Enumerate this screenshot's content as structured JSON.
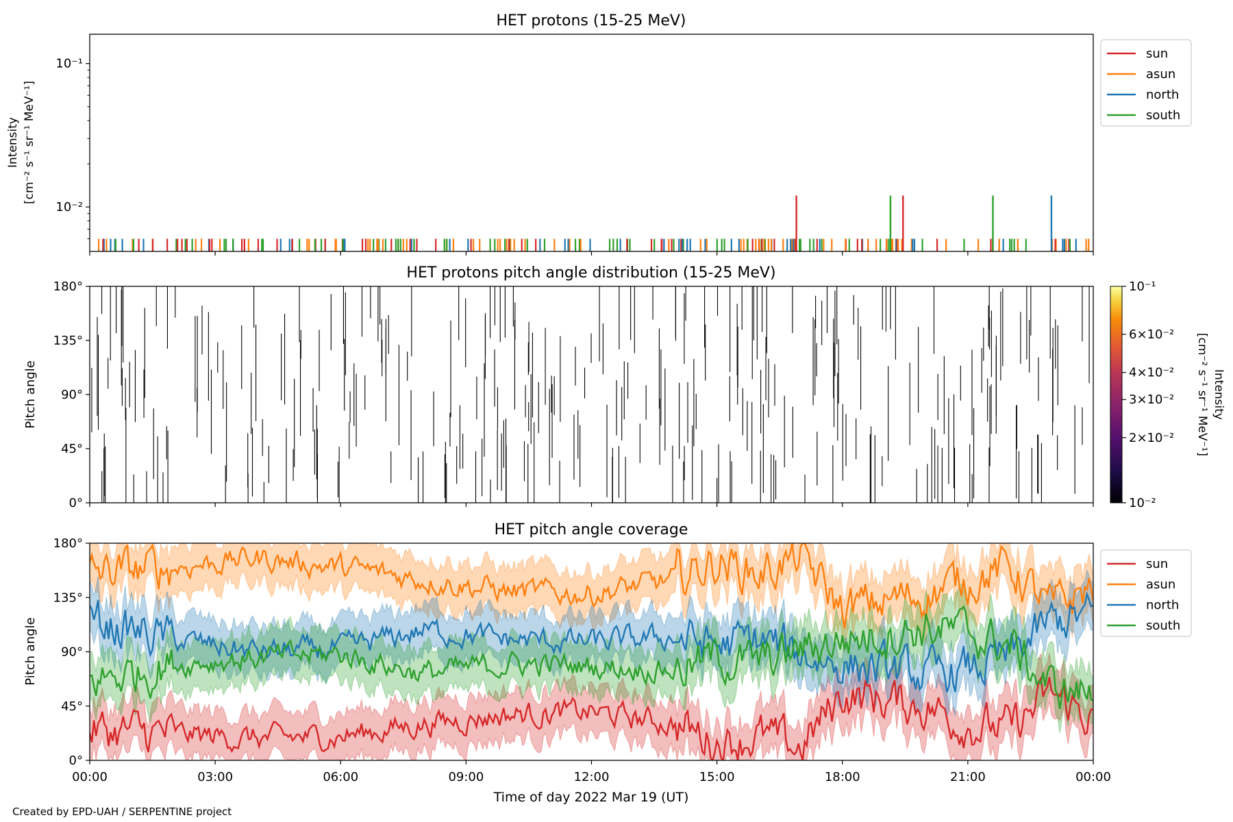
{
  "footer": "Created by EPD-UAH / SERPENTINE project",
  "chart_data": [
    {
      "type": "line",
      "title": "HET protons (15-25 MeV)",
      "ylabel_line1": "Intensity",
      "ylabel_line2": "[cm⁻² s⁻¹ sr⁻¹ MeV⁻¹]",
      "yscale": "log",
      "ylim": [
        0.0049,
        0.16
      ],
      "yticks": [
        {
          "value": 0.1,
          "label": "10⁻¹"
        },
        {
          "value": 0.01,
          "label": "10⁻²"
        }
      ],
      "xlim_hours": [
        0,
        24
      ],
      "legend": {
        "placement": "outside-right-top",
        "entries": [
          "sun",
          "asun",
          "north",
          "south"
        ]
      },
      "series_colors": {
        "sun": "#d62728",
        "asun": "#ff7f0e",
        "north": "#1f77b4",
        "south": "#2ca02c"
      },
      "baseline_spike_value": 0.006,
      "tall_spikes": [
        {
          "series": "sun",
          "time_hours": 16.9,
          "value": 0.012
        },
        {
          "series": "south",
          "time_hours": 19.15,
          "value": 0.012
        },
        {
          "series": "sun",
          "time_hours": 19.45,
          "value": 0.012
        },
        {
          "series": "south",
          "time_hours": 21.6,
          "value": 0.012
        },
        {
          "series": "north",
          "time_hours": 23.0,
          "value": 0.012
        }
      ]
    },
    {
      "type": "heatmap",
      "title": "HET protons pitch angle distribution (15-25 MeV)",
      "ylabel": "Pitch angle",
      "ylim": [
        0,
        180
      ],
      "yticks": [
        "0°",
        "45°",
        "90°",
        "135°",
        "180°"
      ],
      "xlim_hours": [
        0,
        24
      ],
      "colorbar": {
        "label_line1": "Intensity",
        "label_line2": "[cm⁻² s⁻¹ sr⁻¹ MeV⁻¹]",
        "scale": "log",
        "range": [
          0.01,
          0.1
        ],
        "colormap": "inferno",
        "ticks": [
          {
            "value": 0.1,
            "label": "10⁻¹"
          },
          {
            "value": 0.06,
            "label": "6×10⁻²"
          },
          {
            "value": 0.04,
            "label": "4×10⁻²"
          },
          {
            "value": 0.03,
            "label": "3×10⁻²"
          },
          {
            "value": 0.02,
            "label": "2×10⁻²"
          },
          {
            "value": 0.01,
            "label": "10⁻²"
          }
        ]
      }
    },
    {
      "type": "area",
      "title": "HET pitch angle coverage",
      "ylabel": "Pitch angle",
      "ylim": [
        0,
        180
      ],
      "yticks": [
        "0°",
        "45°",
        "90°",
        "135°",
        "180°"
      ],
      "xlabel": "Time of day 2022 Mar 19 (UT)",
      "xlim_hours": [
        0,
        24
      ],
      "xticks": [
        "00:00",
        "03:00",
        "06:00",
        "09:00",
        "12:00",
        "15:00",
        "18:00",
        "21:00",
        "00:00"
      ],
      "legend": {
        "placement": "outside-right-top",
        "entries": [
          "sun",
          "asun",
          "north",
          "south"
        ]
      },
      "series": [
        {
          "name": "sun",
          "color": "#d62728",
          "time_hours": [
            0,
            2,
            4,
            6,
            8,
            10,
            12,
            14,
            15,
            16,
            17,
            18,
            20,
            21,
            22,
            23,
            24
          ],
          "values": [
            25,
            22,
            18,
            20,
            30,
            38,
            40,
            30,
            15,
            20,
            10,
            55,
            45,
            30,
            25,
            55,
            35
          ],
          "band_halfwidth": 20
        },
        {
          "name": "asun",
          "color": "#ff7f0e",
          "time_hours": [
            0,
            2,
            4,
            6,
            8,
            10,
            12,
            14,
            15,
            16,
            17,
            18,
            20,
            21,
            22,
            23,
            24
          ],
          "values": [
            155,
            160,
            168,
            160,
            150,
            140,
            138,
            150,
            165,
            155,
            168,
            125,
            138,
            150,
            160,
            125,
            145
          ],
          "band_halfwidth": 20
        },
        {
          "name": "north",
          "color": "#1f77b4",
          "time_hours": [
            0,
            2,
            4,
            6,
            8,
            10,
            12,
            14,
            15,
            16,
            17,
            18,
            20,
            21,
            22,
            23,
            24
          ],
          "values": [
            115,
            100,
            90,
            92,
            108,
            100,
            98,
            102,
            95,
            100,
            88,
            80,
            70,
            75,
            85,
            115,
            120
          ],
          "band_halfwidth": 20
        },
        {
          "name": "south",
          "color": "#2ca02c",
          "time_hours": [
            0,
            2,
            4,
            6,
            8,
            10,
            12,
            14,
            15,
            16,
            17,
            18,
            20,
            21,
            22,
            23,
            24
          ],
          "values": [
            65,
            80,
            85,
            88,
            72,
            80,
            78,
            75,
            85,
            80,
            92,
            100,
            110,
            105,
            95,
            60,
            55
          ],
          "band_halfwidth": 20
        }
      ]
    }
  ]
}
